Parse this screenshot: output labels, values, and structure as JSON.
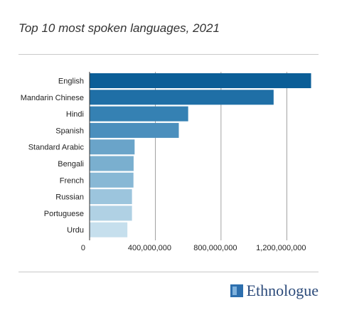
{
  "title": "Top 10 most spoken languages, 2021",
  "logo_text": "Ethnologue",
  "chart_data": {
    "type": "bar",
    "orientation": "horizontal",
    "categories": [
      "English",
      "Mandarin Chinese",
      "Hindi",
      "Spanish",
      "Standard Arabic",
      "Bengali",
      "French",
      "Russian",
      "Portuguese",
      "Urdu"
    ],
    "values": [
      1348000000,
      1120000000,
      600000000,
      543000000,
      274000000,
      268000000,
      267000000,
      258000000,
      258000000,
      230000000
    ],
    "xticks": [
      0,
      400000000,
      800000000,
      1200000000
    ],
    "xtick_labels": [
      "0",
      "400,000,000",
      "800,000,000",
      "1,200,000,000"
    ],
    "xlim": [
      0,
      1350000000
    ],
    "grid": true,
    "colors": [
      "#0b5e97",
      "#1f6fa6",
      "#3581b3",
      "#4b8fbd",
      "#6aa4c9",
      "#7aafcf",
      "#88b8d5",
      "#9cc5dd",
      "#b0d1e4",
      "#c6dfed"
    ]
  }
}
